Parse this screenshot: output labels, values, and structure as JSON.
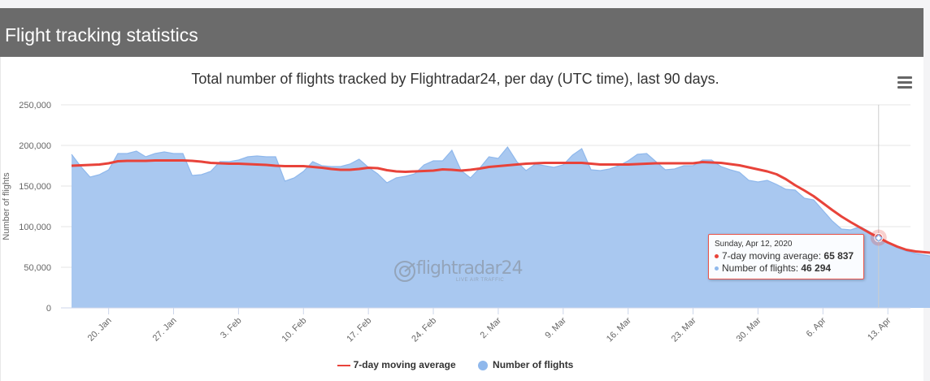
{
  "header": {
    "title": "Flight tracking statistics"
  },
  "colors": {
    "header_bg": "#6b6b6b",
    "area_fill": "#a9c8f0",
    "area_line": "#8fb8ec",
    "avg_line": "#e8433a"
  },
  "menu": {
    "icon": "hamburger-icon"
  },
  "watermark": {
    "name": "flightradar24",
    "tagline": "LIVE AIR TRAFFIC"
  },
  "chart_data": {
    "type": "area",
    "title": "Total number of flights tracked by Flightradar24, per day (UTC time), last 90 days.",
    "ylabel": "Number of flights",
    "ylim": [
      0,
      250000
    ],
    "yticks": [
      0,
      50000,
      100000,
      150000,
      200000,
      250000
    ],
    "ytick_labels": [
      "0",
      "50,000",
      "100,000",
      "150,000",
      "200,000",
      "250,000"
    ],
    "x_start": "2020-01-16",
    "x_end": "2020-04-15",
    "xticks": [
      "2020-01-20",
      "2020-01-27",
      "2020-02-03",
      "2020-02-10",
      "2020-02-17",
      "2020-02-24",
      "2020-03-02",
      "2020-03-09",
      "2020-03-16",
      "2020-03-23",
      "2020-03-30",
      "2020-04-06",
      "2020-04-13"
    ],
    "xtick_labels": [
      "20. Jan",
      "27. Jan",
      "3. Feb",
      "10. Feb",
      "17. Feb",
      "24. Feb",
      "2. Mar",
      "9. Mar",
      "16. Mar",
      "23. Mar",
      "30. Mar",
      "6. Apr",
      "13. Apr"
    ],
    "grid": true,
    "legend": "bottom-center",
    "series": [
      {
        "name": "7-day moving average",
        "type": "line",
        "values": [
          175000,
          175500,
          176000,
          176500,
          178000,
          180500,
          181000,
          181000,
          181000,
          181500,
          181500,
          181500,
          181500,
          181000,
          180000,
          178500,
          178000,
          177500,
          177500,
          177000,
          176500,
          176000,
          175000,
          174500,
          174500,
          174500,
          173500,
          172500,
          171000,
          170000,
          170000,
          171000,
          172500,
          172000,
          169500,
          168000,
          167500,
          168000,
          168500,
          169000,
          170500,
          170000,
          169000,
          170000,
          171500,
          173500,
          174500,
          175500,
          176500,
          177500,
          178000,
          178500,
          178500,
          178500,
          178500,
          178500,
          177500,
          176500,
          176500,
          176500,
          176500,
          177000,
          177500,
          178000,
          178000,
          178000,
          178000,
          178000,
          179500,
          179000,
          178500,
          177000,
          175500,
          173000,
          170500,
          168000,
          164500,
          158500,
          151000,
          144500,
          137500,
          129000,
          120500,
          112500,
          105500,
          99000,
          92500,
          86500,
          80500,
          75500,
          71500,
          69500,
          68500,
          67500,
          66500,
          66000,
          65500,
          65837,
          64800,
          64600
        ],
        "values_note": ""
      },
      {
        "name": "Number of flights",
        "type": "area",
        "values": [
          189000,
          174000,
          161000,
          164000,
          170000,
          190000,
          190000,
          193000,
          186000,
          190000,
          192000,
          190000,
          190000,
          163000,
          164000,
          168000,
          180000,
          180000,
          182000,
          186000,
          187000,
          186000,
          186000,
          156000,
          160000,
          168000,
          180000,
          175000,
          174000,
          174000,
          177000,
          183000,
          173000,
          165000,
          154000,
          160000,
          162000,
          165000,
          176000,
          181000,
          181000,
          194000,
          169000,
          160000,
          172000,
          186000,
          184000,
          198000,
          180000,
          169000,
          177000,
          175000,
          173000,
          176000,
          188000,
          196000,
          170000,
          169000,
          171000,
          175000,
          181000,
          189000,
          190000,
          180000,
          170000,
          171000,
          175000,
          175000,
          182000,
          182000,
          174000,
          170000,
          167000,
          157000,
          155000,
          157000,
          152000,
          146000,
          145000,
          135000,
          133000,
          120000,
          107000,
          97000,
          96000,
          100000,
          94000,
          86000,
          80000,
          74000,
          70000,
          67000,
          65000,
          63000,
          58000,
          54000,
          51000,
          46294,
          55000,
          72000,
          76000
        ]
      }
    ],
    "tooltip": {
      "date": "Sunday, Apr 12, 2020",
      "avg_label": "7-day moving average: ",
      "avg_value": "65 837",
      "flights_label": "Number of flights: ",
      "flights_value": "46 294"
    }
  }
}
